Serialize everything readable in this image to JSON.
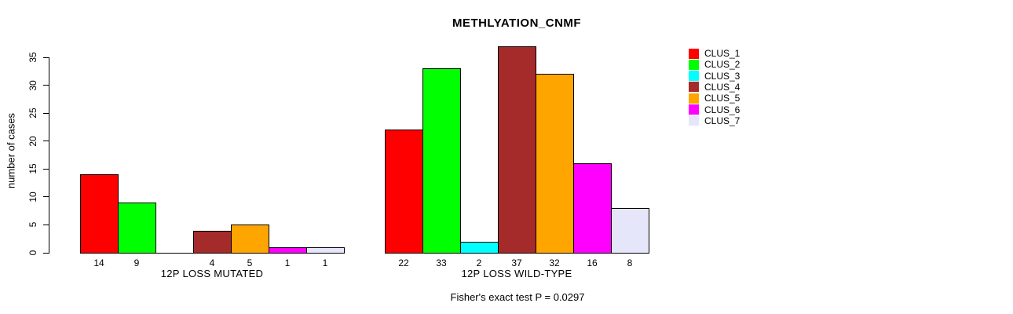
{
  "title": "METHLYATION_CNMF",
  "chart_data": {
    "type": "bar",
    "title": "METHLYATION_CNMF",
    "xlabel": "",
    "ylabel": "number of cases",
    "ylim": [
      0,
      35
    ],
    "yticks": [
      0,
      5,
      10,
      15,
      20,
      25,
      30,
      35
    ],
    "grid": false,
    "legend_position": "right",
    "series": [
      "CLUS_1",
      "CLUS_2",
      "CLUS_3",
      "CLUS_4",
      "CLUS_5",
      "CLUS_6",
      "CLUS_7"
    ],
    "series_colors": [
      "#ff0000",
      "#00ff00",
      "#00ffff",
      "#a52a2a",
      "#ffa500",
      "#ff00ff",
      "#e6e6fa"
    ],
    "bar_border_color": "#000000",
    "groups": [
      {
        "label": "12P LOSS MUTATED",
        "values": [
          14,
          9,
          0,
          4,
          5,
          1,
          1
        ],
        "bar_labels": [
          "14",
          "9",
          "",
          "4",
          "5",
          "1",
          "1"
        ]
      },
      {
        "label": "12P LOSS WILD-TYPE",
        "values": [
          22,
          33,
          2,
          37,
          32,
          16,
          8
        ],
        "bar_labels": [
          "22",
          "33",
          "2",
          "37",
          "32",
          "16",
          "8"
        ]
      }
    ],
    "annotation": "Fisher's exact test P = 0.0297"
  }
}
